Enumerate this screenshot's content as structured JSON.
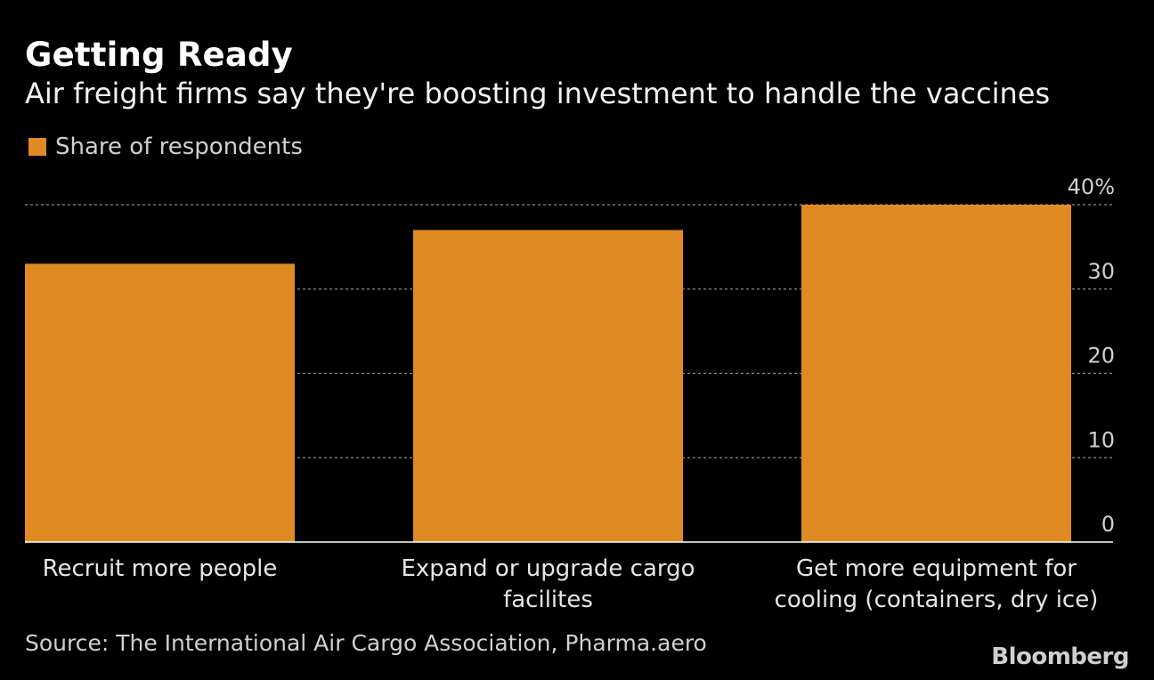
{
  "header": {
    "title": "Getting Ready",
    "subtitle": "Air freight firms say they're boosting investment to handle the vaccines"
  },
  "legend": {
    "label": "Share of respondents"
  },
  "footer": {
    "source": "Source: The International Air Cargo Association, Pharma.aero",
    "brand": "Bloomberg"
  },
  "colors": {
    "bar": "#e08a24",
    "background": "#000000",
    "grid": "#8a8a8a",
    "baseline": "#ffffff"
  },
  "chart_data": {
    "type": "bar",
    "title": "Getting Ready",
    "subtitle": "Air freight firms say they're boosting investment to handle the vaccines",
    "categories": [
      [
        "Recruit more people"
      ],
      [
        "Expand or upgrade cargo",
        "facilites"
      ],
      [
        "Get more equipment for",
        "cooling (containers, dry ice)"
      ]
    ],
    "series": [
      {
        "name": "Share of respondents",
        "values": [
          33,
          37,
          40
        ]
      }
    ],
    "ylim": [
      0,
      40
    ],
    "yticks": [
      0,
      10,
      20,
      30,
      40
    ],
    "ytick_labels": [
      "0",
      "10",
      "20",
      "30",
      "40%"
    ],
    "grid": true,
    "y_axis_side": "right",
    "xlabel": "",
    "ylabel": ""
  }
}
